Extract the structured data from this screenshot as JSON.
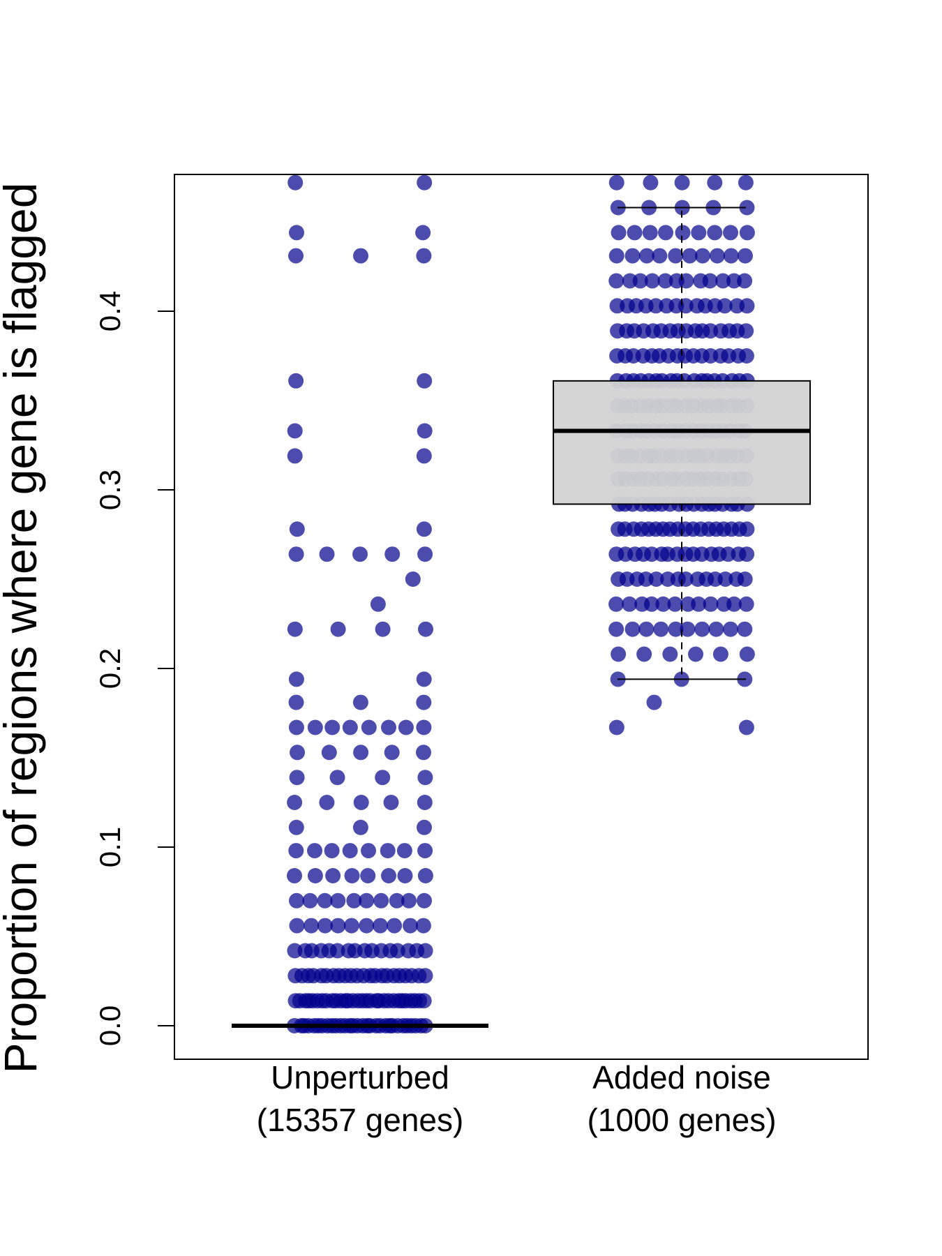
{
  "chart_data": {
    "type": "box",
    "ylabel": "Proportion of regions where gene is flagged",
    "xlabel": "",
    "ylim": [
      -0.018,
      0.478
    ],
    "yticks": [
      "0.0",
      "0.1",
      "0.2",
      "0.3",
      "0.4"
    ],
    "point_color": "#00008B",
    "box_fill": "#D3D3D3",
    "categories": [
      {
        "name": "Unperturbed",
        "sublabel": "(15357 genes)",
        "box": {
          "q1": 0.0,
          "median": 0.0,
          "q3": 0.0,
          "whisker_low": 0.0,
          "whisker_high": 0.0
        },
        "point_values": [
          0.0,
          0.0,
          0.0,
          0.0,
          0.0,
          0.0,
          0.0,
          0.0,
          0.0,
          0.0,
          0.0,
          0.0,
          0.0,
          0.0,
          0.0,
          0.0,
          0.0,
          0.0,
          0.0,
          0.0,
          0.0,
          0.0,
          0.0,
          0.0,
          0.0,
          0.0,
          0.0,
          0.0,
          0.0,
          0.0,
          0.014,
          0.014,
          0.014,
          0.014,
          0.014,
          0.014,
          0.014,
          0.014,
          0.014,
          0.014,
          0.014,
          0.014,
          0.014,
          0.014,
          0.014,
          0.014,
          0.014,
          0.014,
          0.014,
          0.014,
          0.014,
          0.014,
          0.014,
          0.014,
          0.014,
          0.014,
          0.014,
          0.014,
          0.014,
          0.014,
          0.028,
          0.028,
          0.028,
          0.028,
          0.028,
          0.028,
          0.028,
          0.028,
          0.028,
          0.028,
          0.028,
          0.028,
          0.028,
          0.028,
          0.028,
          0.028,
          0.028,
          0.028,
          0.028,
          0.028,
          0.028,
          0.028,
          0.042,
          0.042,
          0.042,
          0.042,
          0.042,
          0.042,
          0.042,
          0.042,
          0.042,
          0.042,
          0.042,
          0.042,
          0.042,
          0.042,
          0.042,
          0.042,
          0.056,
          0.056,
          0.056,
          0.056,
          0.056,
          0.056,
          0.056,
          0.056,
          0.056,
          0.056,
          0.07,
          0.07,
          0.07,
          0.07,
          0.07,
          0.07,
          0.07,
          0.07,
          0.07,
          0.07,
          0.084,
          0.084,
          0.084,
          0.084,
          0.084,
          0.084,
          0.084,
          0.084,
          0.098,
          0.098,
          0.098,
          0.098,
          0.098,
          0.098,
          0.098,
          0.098,
          0.111,
          0.111,
          0.111,
          0.125,
          0.125,
          0.125,
          0.125,
          0.125,
          0.139,
          0.139,
          0.139,
          0.139,
          0.153,
          0.153,
          0.153,
          0.153,
          0.153,
          0.167,
          0.167,
          0.167,
          0.167,
          0.167,
          0.167,
          0.167,
          0.167,
          0.181,
          0.181,
          0.181,
          0.194,
          0.194,
          0.222,
          0.222,
          0.222,
          0.222,
          0.236,
          0.25,
          0.264,
          0.264,
          0.264,
          0.264,
          0.264,
          0.278,
          0.278,
          0.319,
          0.319,
          0.333,
          0.333,
          0.361,
          0.361,
          0.431,
          0.431,
          0.431,
          0.444,
          0.444,
          0.472,
          0.472
        ]
      },
      {
        "name": "Added noise",
        "sublabel": "(1000 genes)",
        "box": {
          "q1": 0.292,
          "median": 0.333,
          "q3": 0.361,
          "whisker_low": 0.194,
          "whisker_high": 0.458
        },
        "point_values": [
          0.167,
          0.167,
          0.181,
          0.194,
          0.194,
          0.194,
          0.208,
          0.208,
          0.208,
          0.208,
          0.208,
          0.208,
          0.222,
          0.222,
          0.222,
          0.222,
          0.222,
          0.222,
          0.222,
          0.222,
          0.222,
          0.222,
          0.236,
          0.236,
          0.236,
          0.236,
          0.236,
          0.236,
          0.236,
          0.236,
          0.236,
          0.236,
          0.236,
          0.236,
          0.25,
          0.25,
          0.25,
          0.25,
          0.25,
          0.25,
          0.25,
          0.25,
          0.25,
          0.25,
          0.25,
          0.25,
          0.25,
          0.25,
          0.264,
          0.264,
          0.264,
          0.264,
          0.264,
          0.264,
          0.264,
          0.264,
          0.264,
          0.264,
          0.264,
          0.264,
          0.264,
          0.264,
          0.264,
          0.264,
          0.278,
          0.278,
          0.278,
          0.278,
          0.278,
          0.278,
          0.278,
          0.278,
          0.278,
          0.278,
          0.278,
          0.278,
          0.278,
          0.278,
          0.278,
          0.278,
          0.278,
          0.278,
          0.292,
          0.292,
          0.292,
          0.292,
          0.292,
          0.292,
          0.292,
          0.292,
          0.292,
          0.292,
          0.292,
          0.292,
          0.292,
          0.292,
          0.292,
          0.292,
          0.292,
          0.292,
          0.306,
          0.306,
          0.306,
          0.306,
          0.306,
          0.306,
          0.306,
          0.306,
          0.306,
          0.306,
          0.306,
          0.306,
          0.306,
          0.306,
          0.306,
          0.306,
          0.306,
          0.306,
          0.319,
          0.319,
          0.319,
          0.319,
          0.319,
          0.319,
          0.319,
          0.319,
          0.319,
          0.319,
          0.319,
          0.319,
          0.319,
          0.319,
          0.319,
          0.319,
          0.319,
          0.319,
          0.333,
          0.333,
          0.333,
          0.333,
          0.333,
          0.333,
          0.333,
          0.333,
          0.333,
          0.333,
          0.333,
          0.333,
          0.333,
          0.333,
          0.333,
          0.333,
          0.333,
          0.333,
          0.347,
          0.347,
          0.347,
          0.347,
          0.347,
          0.347,
          0.347,
          0.347,
          0.347,
          0.347,
          0.347,
          0.347,
          0.347,
          0.347,
          0.347,
          0.347,
          0.347,
          0.347,
          0.361,
          0.361,
          0.361,
          0.361,
          0.361,
          0.361,
          0.361,
          0.361,
          0.361,
          0.361,
          0.361,
          0.361,
          0.361,
          0.361,
          0.361,
          0.361,
          0.361,
          0.361,
          0.375,
          0.375,
          0.375,
          0.375,
          0.375,
          0.375,
          0.375,
          0.375,
          0.375,
          0.375,
          0.375,
          0.375,
          0.375,
          0.375,
          0.375,
          0.375,
          0.389,
          0.389,
          0.389,
          0.389,
          0.389,
          0.389,
          0.389,
          0.389,
          0.389,
          0.389,
          0.389,
          0.389,
          0.389,
          0.389,
          0.389,
          0.389,
          0.403,
          0.403,
          0.403,
          0.403,
          0.403,
          0.403,
          0.403,
          0.403,
          0.403,
          0.403,
          0.403,
          0.403,
          0.403,
          0.403,
          0.417,
          0.417,
          0.417,
          0.417,
          0.417,
          0.417,
          0.417,
          0.417,
          0.417,
          0.417,
          0.417,
          0.417,
          0.431,
          0.431,
          0.431,
          0.431,
          0.431,
          0.431,
          0.431,
          0.431,
          0.431,
          0.431,
          0.444,
          0.444,
          0.444,
          0.444,
          0.444,
          0.444,
          0.444,
          0.444,
          0.444,
          0.458,
          0.458,
          0.458,
          0.458,
          0.458,
          0.472,
          0.472,
          0.472,
          0.472,
          0.472
        ]
      }
    ]
  }
}
